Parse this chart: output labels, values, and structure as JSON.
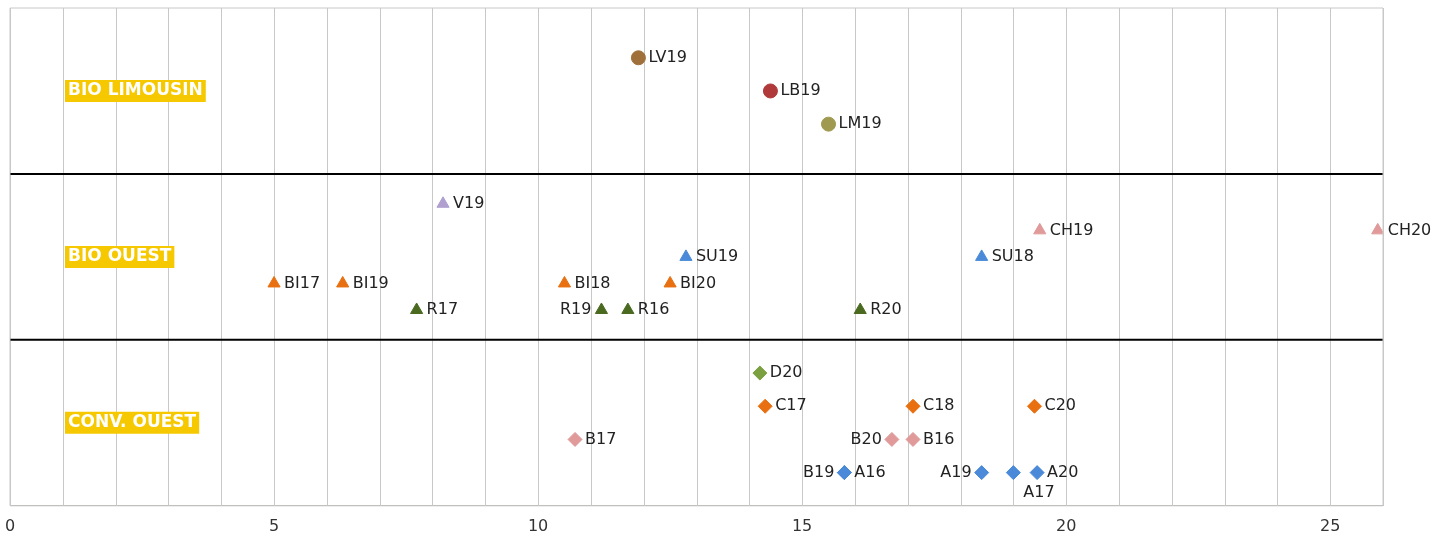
{
  "chart_data": {
    "type": "scatter",
    "orientation": "horizontal",
    "grid": true,
    "legend": false,
    "categories": [
      "BIO LIMOUSIN",
      "BIO OUEST",
      "CONV. OUEST"
    ],
    "xlim": [
      0,
      26
    ],
    "xticks": [
      0,
      {
        "value": 1,
        "label": null
      },
      {
        "value": 2,
        "label": null
      },
      {
        "value": 3,
        "label": null
      },
      {
        "value": 4,
        "label": null
      },
      5,
      {
        "value": 6,
        "label": null
      },
      {
        "value": 7,
        "label": null
      },
      {
        "value": 8,
        "label": null
      },
      {
        "value": 9,
        "label": null
      },
      10,
      {
        "value": 11,
        "label": null
      },
      {
        "value": 12,
        "label": null
      },
      {
        "value": 13,
        "label": null
      },
      {
        "value": 14,
        "label": null
      },
      15,
      {
        "value": 16,
        "label": null
      },
      {
        "value": 17,
        "label": null
      },
      {
        "value": 18,
        "label": null
      },
      {
        "value": 19,
        "label": null
      },
      20,
      {
        "value": 21,
        "label": null
      },
      {
        "value": 22,
        "label": null
      },
      {
        "value": 23,
        "label": null
      },
      {
        "value": 24,
        "label": null
      },
      25,
      {
        "value": 26,
        "label": null
      }
    ],
    "series": [
      {
        "color": "#a0703a",
        "marker": "circle",
        "values": [
          11.9,
          null,
          null
        ],
        "value_labels": [
          "LV19",
          null,
          null
        ]
      },
      {
        "color": "#b03a3a",
        "marker": "circle",
        "values": [
          14.4,
          null,
          null
        ],
        "value_labels": [
          "LB19",
          null,
          null
        ]
      },
      {
        "color": "#a09a50",
        "marker": "circle",
        "values": [
          15.5,
          null,
          null
        ],
        "value_labels": [
          "LM19",
          null,
          null
        ]
      },
      {
        "color": "#b0a0d0",
        "marker": "triangle",
        "values": [
          null,
          8.2,
          null
        ],
        "value_labels": [
          null,
          "V19",
          null
        ]
      },
      {
        "color": "#e09a9a",
        "marker": "triangle",
        "values": [
          null,
          19.5,
          null
        ],
        "value_labels": [
          null,
          "CH19",
          null
        ]
      },
      {
        "color": "#e09a9a",
        "marker": "triangle",
        "values": [
          null,
          25.9,
          null
        ],
        "value_labels": [
          null,
          "CH20",
          null
        ]
      },
      {
        "color": "#4a8ad8",
        "marker": "triangle",
        "values": [
          null,
          12.8,
          null
        ],
        "value_labels": [
          null,
          "SU19",
          null
        ]
      },
      {
        "color": "#4a8ad8",
        "marker": "triangle",
        "values": [
          null,
          18.4,
          null
        ],
        "value_labels": [
          null,
          "SU18",
          null
        ]
      },
      {
        "color": "#e87010",
        "marker": "triangle",
        "values": [
          null,
          5.0,
          null
        ],
        "value_labels": [
          null,
          "BI17",
          null
        ]
      },
      {
        "color": "#e87010",
        "marker": "triangle",
        "values": [
          null,
          6.3,
          null
        ],
        "value_labels": [
          null,
          "BI19",
          null
        ]
      },
      {
        "color": "#e87010",
        "marker": "triangle",
        "values": [
          null,
          10.5,
          null
        ],
        "value_labels": [
          null,
          "BI18",
          null
        ]
      },
      {
        "color": "#e87010",
        "marker": "triangle",
        "values": [
          null,
          12.5,
          null
        ],
        "value_labels": [
          null,
          "BI20",
          null
        ]
      },
      {
        "color": "#4a6a20",
        "marker": "triangle",
        "values": [
          null,
          7.7,
          null
        ],
        "value_labels": [
          null,
          "R17",
          null
        ]
      },
      {
        "color": "#4a6a20",
        "marker": "triangle",
        "values": [
          null,
          11.2,
          null
        ],
        "value_labels": [
          null,
          "R19",
          null
        ]
      },
      {
        "color": "#4a6a20",
        "marker": "triangle",
        "values": [
          null,
          11.7,
          null
        ],
        "value_labels": [
          null,
          "R16",
          null
        ]
      },
      {
        "color": "#4a6a20",
        "marker": "triangle",
        "values": [
          null,
          16.1,
          null
        ],
        "value_labels": [
          null,
          "R20",
          null
        ]
      },
      {
        "color": "#7aa040",
        "marker": "diamond",
        "values": [
          null,
          null,
          14.2
        ],
        "value_labels": [
          null,
          null,
          "D20"
        ]
      },
      {
        "color": "#e87010",
        "marker": "diamond",
        "values": [
          null,
          null,
          14.3
        ],
        "value_labels": [
          null,
          null,
          "C17"
        ]
      },
      {
        "color": "#e87010",
        "marker": "diamond",
        "values": [
          null,
          null,
          17.1
        ],
        "value_labels": [
          null,
          null,
          "C18"
        ]
      },
      {
        "color": "#e87010",
        "marker": "diamond",
        "values": [
          null,
          null,
          19.4
        ],
        "value_labels": [
          null,
          null,
          "C20"
        ]
      },
      {
        "color": "#e09a9a",
        "marker": "diamond",
        "values": [
          null,
          null,
          10.7
        ],
        "value_labels": [
          null,
          null,
          "B17"
        ]
      },
      {
        "color": "#e09a9a",
        "marker": "diamond",
        "values": [
          null,
          null,
          17.1
        ],
        "value_labels": [
          null,
          null,
          "B16"
        ]
      },
      {
        "color": "#e09a9a",
        "marker": "diamond",
        "values": [
          null,
          null,
          16.7
        ],
        "value_labels": [
          null,
          null,
          "B20"
        ]
      },
      {
        "color": "#4a8ad8",
        "marker": "diamond",
        "values": [
          null,
          null,
          15.8
        ],
        "value_labels": [
          null,
          null,
          "A16"
        ]
      },
      {
        "color": "#4a8ad8",
        "marker": "diamond",
        "values": [
          null,
          null,
          15.8
        ],
        "value_labels": [
          null,
          null,
          "B19"
        ]
      },
      {
        "color": "#4a8ad8",
        "marker": "diamond",
        "values": [
          null,
          null,
          18.4
        ],
        "value_labels": [
          null,
          null,
          "A19"
        ]
      },
      {
        "color": "#4a8ad8",
        "marker": "diamond",
        "values": [
          null,
          null,
          19.0
        ],
        "value_labels": [
          null,
          null,
          "A17"
        ]
      },
      {
        "color": "#4a8ad8",
        "marker": "diamond",
        "values": [
          null,
          null,
          19.45
        ],
        "value_labels": [
          null,
          null,
          "A20"
        ]
      }
    ]
  }
}
